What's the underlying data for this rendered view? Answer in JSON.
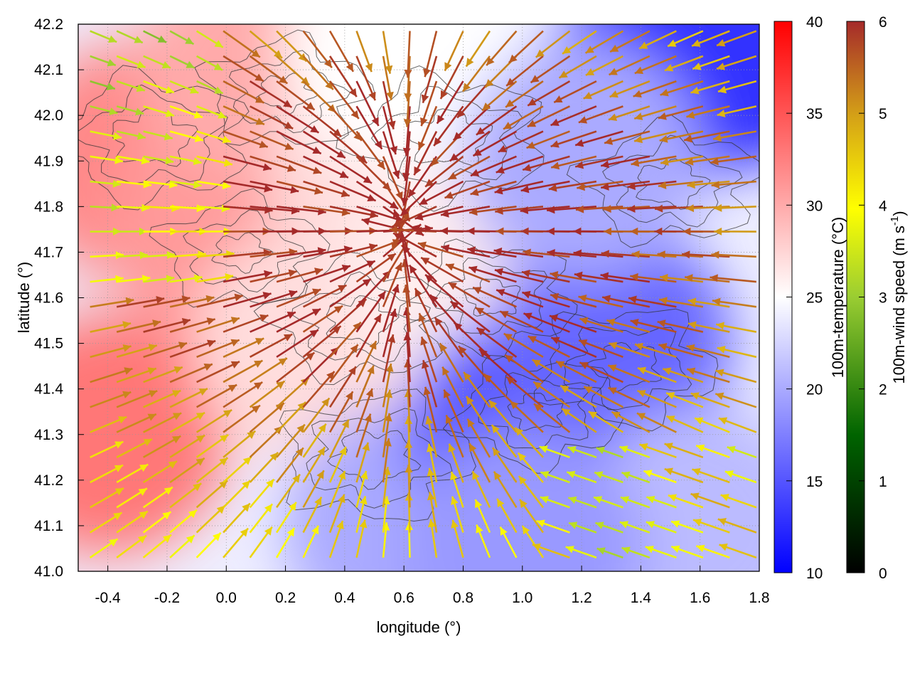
{
  "chart_data": {
    "type": "heatmap",
    "overlays": [
      "vector-field",
      "contour"
    ],
    "xlabel": "longitude (°)",
    "ylabel": "latitude (°)",
    "xlim": [
      -0.5,
      1.8
    ],
    "ylim": [
      41.0,
      42.2
    ],
    "x_ticks": [
      "-0.4",
      "-0.2",
      "0.0",
      "0.2",
      "0.4",
      "0.6",
      "0.8",
      "1.0",
      "1.2",
      "1.4",
      "1.6",
      "1.8"
    ],
    "y_ticks": [
      "41.0",
      "41.1",
      "41.2",
      "41.3",
      "41.4",
      "41.5",
      "41.6",
      "41.7",
      "41.8",
      "41.9",
      "42.0",
      "42.1",
      "42.2"
    ],
    "grid": true,
    "temperature_colorbar": {
      "label": "100m-temperature (°C)",
      "range": [
        10,
        40
      ],
      "ticks": [
        "10",
        "15",
        "20",
        "25",
        "30",
        "35",
        "40"
      ],
      "colors": [
        "#0000ff",
        "#ffffff",
        "#ff0000"
      ]
    },
    "wind_colorbar": {
      "label_main": "100m-wind speed (m s",
      "label_sup": "-1",
      "label_end": ")",
      "range": [
        0,
        6
      ],
      "ticks": [
        "0",
        "1",
        "2",
        "3",
        "4",
        "5",
        "6"
      ],
      "colors": [
        "#000000",
        "#006400",
        "#9acd32",
        "#ffff00",
        "#d4a017",
        "#a52a2a"
      ]
    },
    "temperature_regions": [
      {
        "lon": -0.4,
        "lat": 41.3,
        "temp": 33
      },
      {
        "lon": -0.3,
        "lat": 41.9,
        "temp": 32
      },
      {
        "lon": 0.0,
        "lat": 41.75,
        "temp": 31
      },
      {
        "lon": 0.1,
        "lat": 42.1,
        "temp": 30
      },
      {
        "lon": 0.3,
        "lat": 41.5,
        "temp": 27
      },
      {
        "lon": 0.55,
        "lat": 41.9,
        "temp": 27
      },
      {
        "lon": 0.6,
        "lat": 42.15,
        "temp": 25
      },
      {
        "lon": 0.8,
        "lat": 41.65,
        "temp": 26
      },
      {
        "lon": 0.6,
        "lat": 41.1,
        "temp": 20
      },
      {
        "lon": 1.0,
        "lat": 41.3,
        "temp": 15
      },
      {
        "lon": 1.3,
        "lat": 41.5,
        "temp": 16
      },
      {
        "lon": 1.5,
        "lat": 42.1,
        "temp": 15
      },
      {
        "lon": 1.7,
        "lat": 42.15,
        "temp": 13
      },
      {
        "lon": 1.2,
        "lat": 41.9,
        "temp": 20
      },
      {
        "lon": 1.6,
        "lat": 41.1,
        "temp": 21
      },
      {
        "lon": 1.0,
        "lat": 41.05,
        "temp": 19
      }
    ],
    "wind_field_description": "strong winds (about 6 m s-1) converging from the east and west toward longitude 0.3-0.8, latitude 41.6-41.9; weaker winds (2-4 m s-1) near the northwest corner and the southeast"
  }
}
